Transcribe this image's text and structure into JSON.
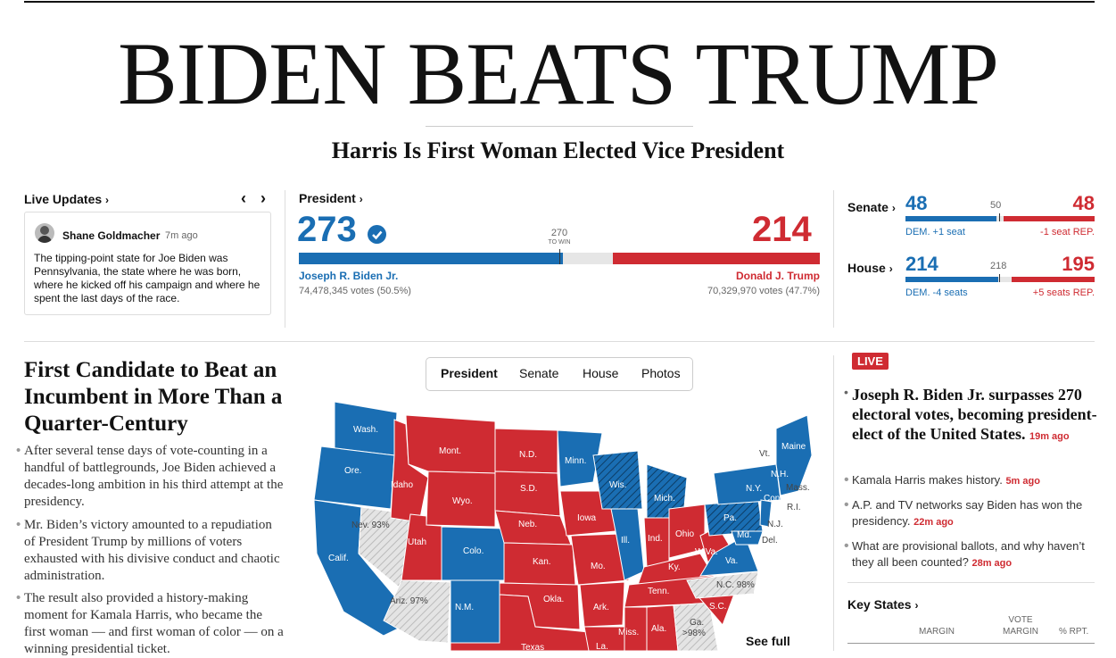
{
  "headline": "BIDEN BEATS TRUMP",
  "subheadline": "Harris Is First Woman Elected Vice President",
  "live_updates": {
    "label": "Live Updates",
    "author": "Shane Goldmacher",
    "time": "7m ago",
    "text": "The tipping-point state for Joe Biden was Pennsylvania, the state where he was born, where he kicked off his campaign and where he spent the last days of the race."
  },
  "president": {
    "label": "President",
    "dem_votes_ev": "273",
    "rep_votes_ev": "214",
    "to_win_num": "270",
    "to_win_label": "TO WIN",
    "dem_name": "Joseph R. Biden Jr.",
    "dem_popular": "74,478,345 votes (50.5%)",
    "rep_name": "Donald J. Trump",
    "rep_popular": "70,329,970 votes (47.7%)",
    "dem_share": 0.507,
    "rep_share": 0.398
  },
  "senate": {
    "label": "Senate",
    "dem": "48",
    "mid": "50",
    "rep": "48",
    "dem_note": "DEM. +1 seat",
    "rep_note": "-1 seat REP."
  },
  "house": {
    "label": "House",
    "dem": "214",
    "mid": "218",
    "rep": "195",
    "dem_note": "DEM. -4 seats",
    "rep_note": "+5 seats REP."
  },
  "story": {
    "title": "First Candidate to Beat an Incumbent in More Than a Quarter-Century",
    "paragraphs": [
      "After several tense days of vote-counting in a handful of battlegrounds, Joe Biden achieved a decades-long ambition in his third attempt at the presidency.",
      "Mr. Biden’s victory amounted to a repudiation of President Trump by millions of voters exhausted with his divisive conduct and chaotic administration.",
      "The result also provided a history-making moment for Kamala Harris, who became the first woman — and first woman of color — on a winning presidential ticket."
    ]
  },
  "map_tabs": [
    "President",
    "Senate",
    "House",
    "Photos"
  ],
  "map_labels": {
    "wash": "Wash.",
    "ore": "Ore.",
    "calif": "Calif.",
    "nev": "Nev. 93%",
    "idaho": "Idaho",
    "mont": "Mont.",
    "wyo": "Wyo.",
    "utah": "Utah",
    "ariz": "Ariz. 97%",
    "colo": "Colo.",
    "nm": "N.M.",
    "nd": "N.D.",
    "sd": "S.D.",
    "neb": "Neb.",
    "kan": "Kan.",
    "okla": "Okla.",
    "texas": "Texas",
    "minn": "Minn.",
    "iowa": "Iowa",
    "mo": "Mo.",
    "ark": "Ark.",
    "wis": "Wis.",
    "ill": "Ill.",
    "mich": "Mich.",
    "ind": "Ind.",
    "ohio": "Ohio",
    "ky": "Ky.",
    "tenn": "Tenn.",
    "miss": "Miss.",
    "ala": "Ala.",
    "ga": "Ga.",
    "ga2": ">98%",
    "sc": "S.C.",
    "nc": "N.C. 98%",
    "va": "Va.",
    "wva": "W.Va.",
    "pa": "Pa.",
    "ny": "N.Y.",
    "vt": "Vt.",
    "maine": "Maine",
    "nh": "N.H.",
    "mass": "Mass.",
    "conn": "Conn.",
    "ri": "R.I.",
    "nj": "N.J.",
    "md": "Md.",
    "del": "Del.",
    "la": "La."
  },
  "see_full": "See full",
  "live_badge": "LIVE",
  "live_headline": "Joseph R. Biden Jr. surpasses 270 electoral votes, becoming president-elect of the United States.",
  "live_headline_time": "19m ago",
  "live_items": [
    {
      "text": "Kamala Harris makes history.",
      "time": "5m ago"
    },
    {
      "text": "A.P. and TV networks say Biden has won the presidency.",
      "time": "22m ago"
    },
    {
      "text": "What are provisional ballots, and why haven’t they all been counted?",
      "time": "28m ago"
    }
  ],
  "key_states": {
    "label": "Key States",
    "col_margin": "MARGIN",
    "col_vote_margin_1": "VOTE",
    "col_vote_margin_2": "MARGIN",
    "col_rpt": "% RPT."
  },
  "colors": {
    "dem": "#1a6eb3",
    "rep": "#cf2b32",
    "neutral": "#e6e6e6"
  }
}
